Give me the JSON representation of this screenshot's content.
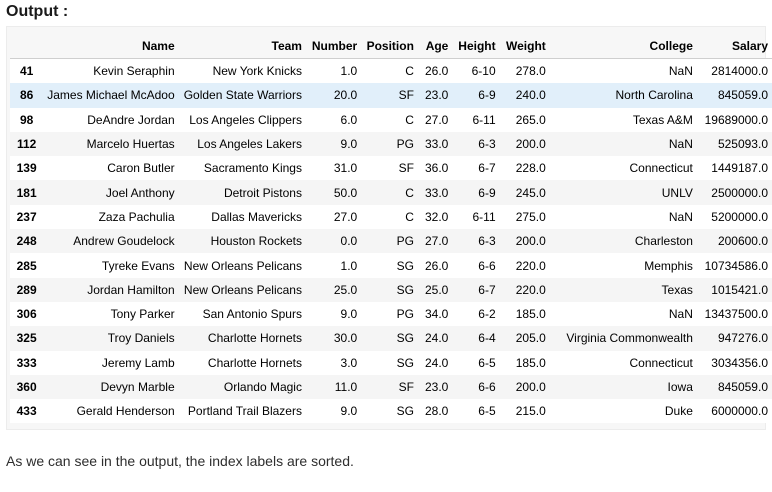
{
  "heading": "Output :",
  "table": {
    "columns": [
      "",
      "Name",
      "Team",
      "Number",
      "Position",
      "Age",
      "Height",
      "Weight",
      "College",
      "Salary"
    ],
    "rows": [
      [
        "41",
        "Kevin Seraphin",
        "New York Knicks",
        "1.0",
        "C",
        "26.0",
        "6-10",
        "278.0",
        "NaN",
        "2814000.0"
      ],
      [
        "86",
        "James Michael McAdoo",
        "Golden State Warriors",
        "20.0",
        "SF",
        "23.0",
        "6-9",
        "240.0",
        "North Carolina",
        "845059.0"
      ],
      [
        "98",
        "DeAndre Jordan",
        "Los Angeles Clippers",
        "6.0",
        "C",
        "27.0",
        "6-11",
        "265.0",
        "Texas A&M",
        "19689000.0"
      ],
      [
        "112",
        "Marcelo Huertas",
        "Los Angeles Lakers",
        "9.0",
        "PG",
        "33.0",
        "6-3",
        "200.0",
        "NaN",
        "525093.0"
      ],
      [
        "139",
        "Caron Butler",
        "Sacramento Kings",
        "31.0",
        "SF",
        "36.0",
        "6-7",
        "228.0",
        "Connecticut",
        "1449187.0"
      ],
      [
        "181",
        "Joel Anthony",
        "Detroit Pistons",
        "50.0",
        "C",
        "33.0",
        "6-9",
        "245.0",
        "UNLV",
        "2500000.0"
      ],
      [
        "237",
        "Zaza Pachulia",
        "Dallas Mavericks",
        "27.0",
        "C",
        "32.0",
        "6-11",
        "275.0",
        "NaN",
        "5200000.0"
      ],
      [
        "248",
        "Andrew Goudelock",
        "Houston Rockets",
        "0.0",
        "PG",
        "27.0",
        "6-3",
        "200.0",
        "Charleston",
        "200600.0"
      ],
      [
        "285",
        "Tyreke Evans",
        "New Orleans Pelicans",
        "1.0",
        "SG",
        "26.0",
        "6-6",
        "220.0",
        "Memphis",
        "10734586.0"
      ],
      [
        "289",
        "Jordan Hamilton",
        "New Orleans Pelicans",
        "25.0",
        "SG",
        "25.0",
        "6-7",
        "220.0",
        "Texas",
        "1015421.0"
      ],
      [
        "306",
        "Tony Parker",
        "San Antonio Spurs",
        "9.0",
        "PG",
        "34.0",
        "6-2",
        "185.0",
        "NaN",
        "13437500.0"
      ],
      [
        "325",
        "Troy Daniels",
        "Charlotte Hornets",
        "30.0",
        "SG",
        "24.0",
        "6-4",
        "205.0",
        "Virginia Commonwealth",
        "947276.0"
      ],
      [
        "333",
        "Jeremy Lamb",
        "Charlotte Hornets",
        "3.0",
        "SG",
        "24.0",
        "6-5",
        "185.0",
        "Connecticut",
        "3034356.0"
      ],
      [
        "360",
        "Devyn Marble",
        "Orlando Magic",
        "11.0",
        "SF",
        "23.0",
        "6-6",
        "200.0",
        "Iowa",
        "845059.0"
      ],
      [
        "433",
        "Gerald Henderson",
        "Portland Trail Blazers",
        "9.0",
        "SG",
        "28.0",
        "6-5",
        "215.0",
        "Duke",
        "6000000.0"
      ]
    ],
    "highlighted_row": 1
  },
  "caption": "As we can see in the output, the index labels are sorted."
}
